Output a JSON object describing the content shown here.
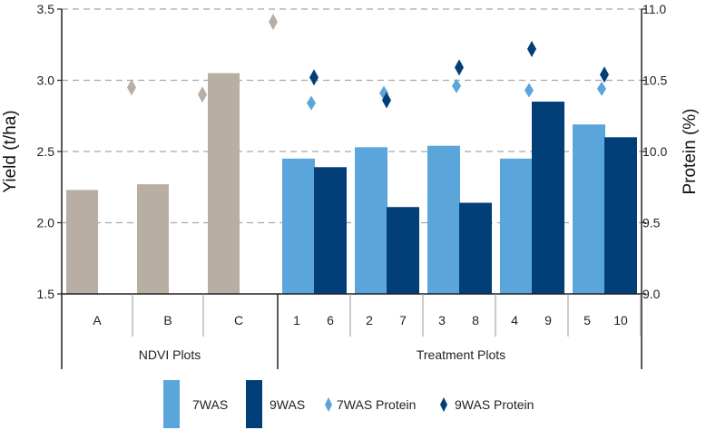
{
  "chart_data": {
    "type": "bar",
    "ylabel_left": "Yield (t/ha)",
    "ylabel_right": "Protein (%)",
    "ylim_left": [
      1.5,
      3.5
    ],
    "ylim_right": [
      9.0,
      11.0
    ],
    "yticks_left": [
      "1.5",
      "2.0",
      "2.5",
      "3.0",
      "3.5"
    ],
    "yticks_right": [
      "9.0",
      "9.5",
      "10.0",
      "10.5",
      "11.0"
    ],
    "grid": "horizontal dashed",
    "groups": [
      {
        "label": "NDVI Plots",
        "columns": [
          "A",
          "B",
          "C"
        ]
      },
      {
        "label": "Treatment Plots",
        "columns": [
          "1 6",
          "2 7",
          "3 8",
          "4 9",
          "5 10"
        ]
      }
    ],
    "ndvi": {
      "categories": [
        "A",
        "B",
        "C"
      ],
      "yield": [
        2.23,
        2.27,
        3.05
      ],
      "protein": [
        10.45,
        10.4,
        10.91
      ],
      "color": "#b8aea4"
    },
    "treatment": {
      "labels_7was": [
        "1",
        "2",
        "3",
        "4",
        "5"
      ],
      "labels_9was": [
        "6",
        "7",
        "8",
        "9",
        "10"
      ]
    },
    "series": [
      {
        "name": "7WAS",
        "kind": "bar",
        "color": "#5aa5d9",
        "values": [
          2.45,
          2.53,
          2.54,
          2.45,
          2.69
        ]
      },
      {
        "name": "9WAS",
        "kind": "bar",
        "color": "#023f78",
        "values": [
          2.39,
          2.11,
          2.14,
          2.85,
          2.6
        ]
      },
      {
        "name": "7WAS Protein",
        "kind": "marker",
        "color": "#5aa5d9",
        "values": [
          10.34,
          10.41,
          10.46,
          10.43,
          10.44
        ]
      },
      {
        "name": "9WAS Protein",
        "kind": "marker",
        "color": "#023f78",
        "values": [
          10.52,
          10.36,
          10.59,
          10.72,
          10.54
        ]
      }
    ],
    "legend_position": "bottom"
  }
}
